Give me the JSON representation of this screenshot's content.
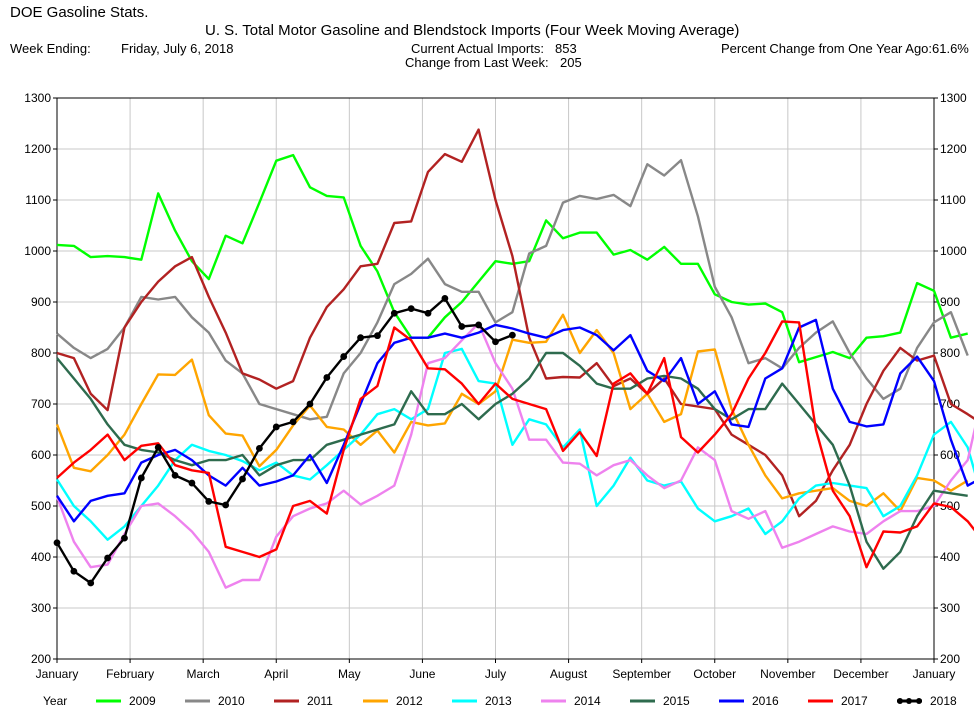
{
  "header": {
    "brand": "DOE Gasoline Stats.",
    "title": "U. S. Total Motor Gasoline and Blendstock Imports (Four Week Moving Average)",
    "week_ending_label": "Week Ending:",
    "week_ending_value": "Friday, July 6, 2018",
    "current_label": "Current Actual Imports:",
    "current_value": "853",
    "change_label": "Change from Last Week:",
    "change_value": "205",
    "pct_label": "Percent Change from One Year Ago:",
    "pct_value": "61.6%"
  },
  "chart_data": {
    "type": "line",
    "title": "U. S. Total Motor Gasoline and Blendstock Imports (Four Week Moving Average)",
    "xlabel": "",
    "ylabel": "",
    "x_unit": "week of year",
    "xlim": [
      1,
      53
    ],
    "ylim": [
      200,
      1300
    ],
    "y_ticks": [
      200,
      300,
      400,
      500,
      600,
      700,
      800,
      900,
      1000,
      1100,
      1200,
      1300
    ],
    "x_ticks": [
      "January",
      "February",
      "March",
      "April",
      "May",
      "June",
      "July",
      "August",
      "September",
      "October",
      "November",
      "December",
      "January"
    ],
    "grid": true,
    "legend_label": "Year",
    "legend_position": "bottom",
    "series": [
      {
        "name": "2009",
        "color": "#00ff00",
        "values": [
          1012,
          1010,
          988,
          990,
          988,
          983,
          1113,
          1040,
          980,
          945,
          1030,
          1015,
          1095,
          1177,
          1188,
          1125,
          1108,
          1105,
          1010,
          960,
          880,
          830,
          830,
          870,
          900,
          940,
          980,
          975,
          980,
          1060,
          1025,
          1036,
          1036,
          993,
          1002,
          983,
          1008,
          975,
          975,
          915,
          900,
          895,
          897,
          880,
          782,
          792,
          802,
          790,
          830,
          833,
          840,
          937,
          922,
          830,
          838
        ]
      },
      {
        "name": "2010",
        "color": "#888888",
        "values": [
          838,
          810,
          790,
          808,
          850,
          910,
          905,
          910,
          870,
          840,
          785,
          760,
          700,
          690,
          680,
          670,
          675,
          760,
          800,
          860,
          935,
          955,
          985,
          935,
          920,
          920,
          860,
          880,
          995,
          1010,
          1095,
          1108,
          1102,
          1110,
          1088,
          1170,
          1148,
          1178,
          1068,
          930,
          870,
          780,
          790,
          770,
          810,
          840,
          862,
          800,
          750,
          710,
          730,
          810,
          860,
          880,
          795
        ]
      },
      {
        "name": "2011",
        "color": "#b22222",
        "values": [
          800,
          790,
          720,
          688,
          850,
          900,
          940,
          970,
          988,
          910,
          840,
          760,
          748,
          730,
          745,
          830,
          890,
          925,
          970,
          975,
          1055,
          1058,
          1155,
          1190,
          1175,
          1238,
          1100,
          990,
          830,
          750,
          753,
          752,
          780,
          735,
          750,
          720,
          750,
          700,
          695,
          690,
          640,
          620,
          600,
          560,
          480,
          510,
          570,
          620,
          700,
          765,
          810,
          785,
          795,
          700,
          680,
          658
        ]
      },
      {
        "name": "2012",
        "color": "#ffa500",
        "values": [
          660,
          575,
          568,
          600,
          640,
          700,
          758,
          757,
          787,
          678,
          642,
          638,
          578,
          610,
          658,
          697,
          655,
          650,
          620,
          648,
          605,
          665,
          658,
          662,
          720,
          700,
          725,
          826,
          820,
          822,
          875,
          800,
          845,
          800,
          690,
          720,
          665,
          680,
          803,
          807,
          690,
          620,
          560,
          515,
          525,
          530,
          535,
          510,
          500,
          525,
          490,
          555,
          550,
          530,
          550
        ]
      },
      {
        "name": "2013",
        "color": "#00ffff",
        "values": [
          552,
          500,
          470,
          434,
          460,
          500,
          540,
          590,
          620,
          608,
          600,
          588,
          570,
          585,
          560,
          552,
          580,
          610,
          640,
          680,
          690,
          670,
          690,
          800,
          808,
          745,
          740,
          620,
          670,
          660,
          615,
          650,
          500,
          540,
          595,
          550,
          540,
          548,
          495,
          470,
          480,
          495,
          445,
          470,
          515,
          540,
          545,
          540,
          535,
          480,
          500,
          560,
          640,
          665,
          615,
          500
        ]
      },
      {
        "name": "2014",
        "color": "#ee82ee",
        "values": [
          518,
          430,
          380,
          385,
          445,
          500,
          505,
          480,
          450,
          410,
          340,
          355,
          355,
          440,
          480,
          495,
          505,
          530,
          503,
          520,
          540,
          640,
          780,
          790,
          825,
          858,
          780,
          730,
          630,
          630,
          585,
          583,
          560,
          580,
          590,
          560,
          535,
          550,
          615,
          590,
          490,
          475,
          490,
          418,
          430,
          445,
          460,
          450,
          445,
          470,
          490,
          490,
          500,
          550,
          590,
          735,
          763
        ]
      },
      {
        "name": "2015",
        "color": "#2e6b4e",
        "values": [
          790,
          750,
          710,
          660,
          620,
          610,
          605,
          590,
          580,
          590,
          590,
          600,
          560,
          580,
          590,
          590,
          620,
          630,
          640,
          650,
          660,
          725,
          680,
          680,
          700,
          670,
          700,
          720,
          750,
          800,
          800,
          775,
          740,
          730,
          730,
          750,
          755,
          750,
          730,
          690,
          670,
          690,
          690,
          740,
          700,
          660,
          620,
          540,
          430,
          377,
          410,
          480,
          530,
          525,
          520
        ]
      },
      {
        "name": "2016",
        "color": "#0000ff",
        "values": [
          520,
          470,
          510,
          520,
          525,
          585,
          600,
          610,
          590,
          560,
          540,
          575,
          540,
          548,
          560,
          600,
          545,
          620,
          700,
          780,
          820,
          830,
          830,
          838,
          830,
          840,
          855,
          848,
          838,
          830,
          845,
          850,
          835,
          805,
          835,
          765,
          745,
          790,
          700,
          725,
          660,
          655,
          750,
          770,
          850,
          865,
          730,
          665,
          656,
          660,
          760,
          793,
          745,
          630,
          540,
          558
        ]
      },
      {
        "name": "2017",
        "color": "#ff0000",
        "values": [
          555,
          585,
          610,
          640,
          590,
          618,
          623,
          580,
          570,
          565,
          420,
          410,
          400,
          415,
          500,
          510,
          485,
          610,
          710,
          735,
          850,
          825,
          770,
          768,
          740,
          700,
          740,
          710,
          700,
          690,
          608,
          645,
          598,
          740,
          760,
          720,
          790,
          635,
          605,
          640,
          680,
          750,
          800,
          862,
          860,
          650,
          530,
          480,
          380,
          450,
          448,
          460,
          505,
          498,
          470,
          428
        ]
      },
      {
        "name": "2018",
        "color": "#000000",
        "values": [
          428,
          372,
          349,
          398,
          437,
          555,
          615,
          560,
          545,
          509,
          502,
          553,
          613,
          655,
          665,
          700,
          752,
          793,
          830,
          834,
          878,
          887,
          878,
          907,
          852,
          855,
          822,
          835
        ]
      }
    ]
  }
}
